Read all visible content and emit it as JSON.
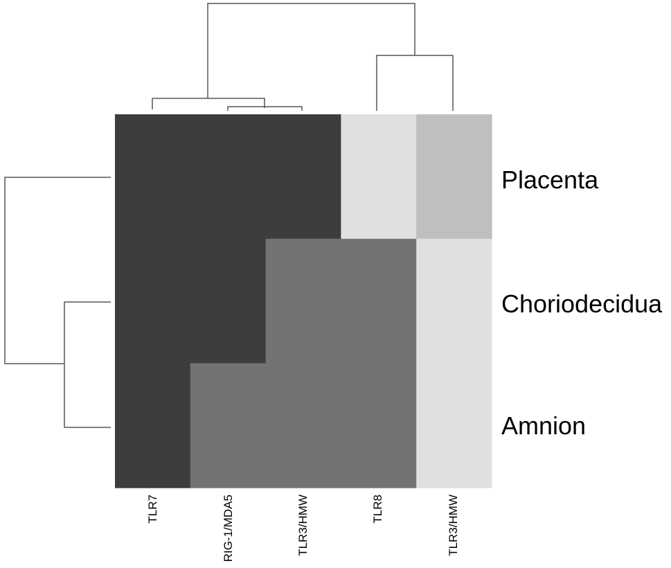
{
  "chart_data": {
    "type": "heatmap",
    "title": "",
    "rows": [
      "Placenta",
      "Choriodecidua",
      "Amnion"
    ],
    "columns": [
      "TLR7",
      "RIG-1/MDA5",
      "TLR3/HMW",
      "TLR8",
      "TLR3/HMW"
    ],
    "levels": {
      "1": "#3d3d3d",
      "2": "#737373",
      "3": "#bfbfbf",
      "4": "#e0e0e0"
    },
    "cells": [
      [
        1,
        1,
        1,
        4,
        3
      ],
      [
        1,
        1,
        2,
        2,
        4
      ],
      [
        1,
        2,
        2,
        2,
        4
      ]
    ],
    "row_dendrogram": "(Placenta,(Choriodecidua,Amnion))",
    "column_dendrogram": "((TLR7,(RIG-1/MDA5,TLR3/HMW)),(TLR8,TLR3/HMW))"
  }
}
